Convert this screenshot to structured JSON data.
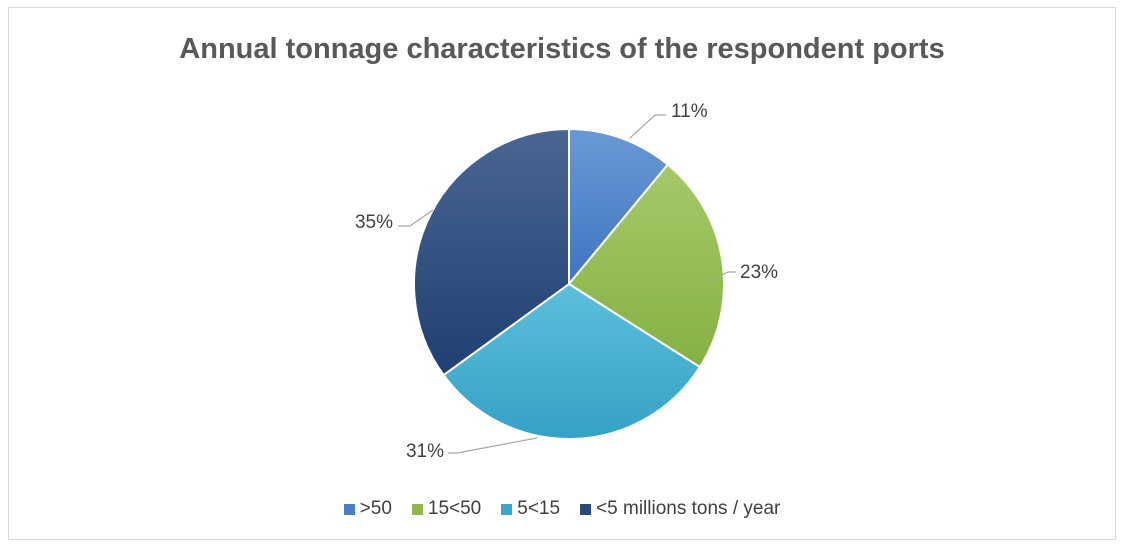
{
  "chart_data": {
    "type": "pie",
    "title": "Annual tonnage characteristics of the respondent ports",
    "categories": [
      ">50",
      "15<50",
      "5<15",
      "<5 millions tons / year"
    ],
    "values": [
      11,
      23,
      31,
      35
    ],
    "data_labels": [
      "11%",
      "23%",
      "31%",
      "35%"
    ],
    "colors": [
      "#4a7fc6",
      "#8fb84f",
      "#3aa5c8",
      "#2a4a7a"
    ],
    "legend_position": "bottom",
    "start_angle": "12 o'clock, clockwise"
  }
}
